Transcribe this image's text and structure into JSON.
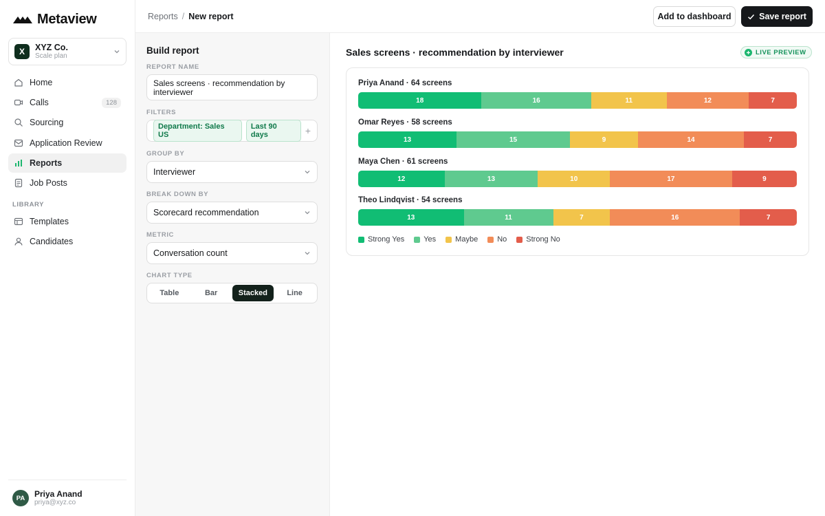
{
  "app": {
    "name": "Metaview"
  },
  "org": {
    "initial": "X",
    "name": "XYZ Co.",
    "plan": "Scale plan"
  },
  "nav": {
    "items": [
      {
        "label": "Home",
        "icon": "home-icon"
      },
      {
        "label": "Calls",
        "icon": "video-icon",
        "count": "128"
      },
      {
        "label": "Sourcing",
        "icon": "search-icon"
      },
      {
        "label": "Application Review",
        "icon": "inbox-icon"
      },
      {
        "label": "Reports",
        "icon": "bar-chart-icon",
        "active": true
      },
      {
        "label": "Job Posts",
        "icon": "document-icon"
      }
    ],
    "library_label": "LIBRARY",
    "library_items": [
      {
        "label": "Templates",
        "icon": "layout-icon"
      },
      {
        "label": "Candidates",
        "icon": "user-icon"
      }
    ]
  },
  "user": {
    "initials": "PA",
    "name": "Priya Anand",
    "email": "priya@xyz.co"
  },
  "breadcrumb": {
    "parent": "Reports",
    "separator": "/",
    "current": "New report"
  },
  "actions": {
    "add_dashboard": "Add to dashboard",
    "save": "Save report"
  },
  "builder": {
    "title": "Build report",
    "report_name_label": "REPORT NAME",
    "report_name_value": "Sales screens · recommendation by interviewer",
    "filters_label": "FILTERS",
    "filters": [
      "Department: Sales US",
      "Last 90 days"
    ],
    "add_filter": "+",
    "group_by_label": "GROUP BY",
    "group_by_value": "Interviewer",
    "break_down_label": "BREAK DOWN BY",
    "break_down_value": "Scorecard recommendation",
    "metric_label": "METRIC",
    "metric_value": "Conversation count",
    "chart_type_label": "CHART TYPE",
    "chart_types": [
      "Table",
      "Bar",
      "Stacked",
      "Line"
    ],
    "chart_type_selected": "Stacked"
  },
  "preview": {
    "title": "Sales screens · recommendation by interviewer",
    "live_label": "LIVE PREVIEW"
  },
  "colors": {
    "strong_yes": "#11bd74",
    "yes": "#5fca8f",
    "maybe": "#f2c44b",
    "no": "#f28c58",
    "strong_no": "#e35d4b",
    "accent": "#16181b"
  },
  "chart_data": {
    "type": "bar",
    "stacked": true,
    "orientation": "horizontal",
    "categories": [
      "Priya Anand · 64 screens",
      "Omar Reyes · 58 screens",
      "Maya Chen · 61 screens",
      "Theo Lindqvist · 54 screens"
    ],
    "series": [
      {
        "name": "Strong Yes",
        "color": "#11bd74",
        "values": [
          18,
          13,
          12,
          13
        ]
      },
      {
        "name": "Yes",
        "color": "#5fca8f",
        "values": [
          16,
          15,
          13,
          11
        ]
      },
      {
        "name": "Maybe",
        "color": "#f2c44b",
        "values": [
          11,
          9,
          10,
          7
        ]
      },
      {
        "name": "No",
        "color": "#f28c58",
        "values": [
          12,
          14,
          17,
          16
        ]
      },
      {
        "name": "Strong No",
        "color": "#e35d4b",
        "values": [
          7,
          7,
          9,
          7
        ]
      }
    ],
    "legend": "bottom-left",
    "grid": false
  }
}
